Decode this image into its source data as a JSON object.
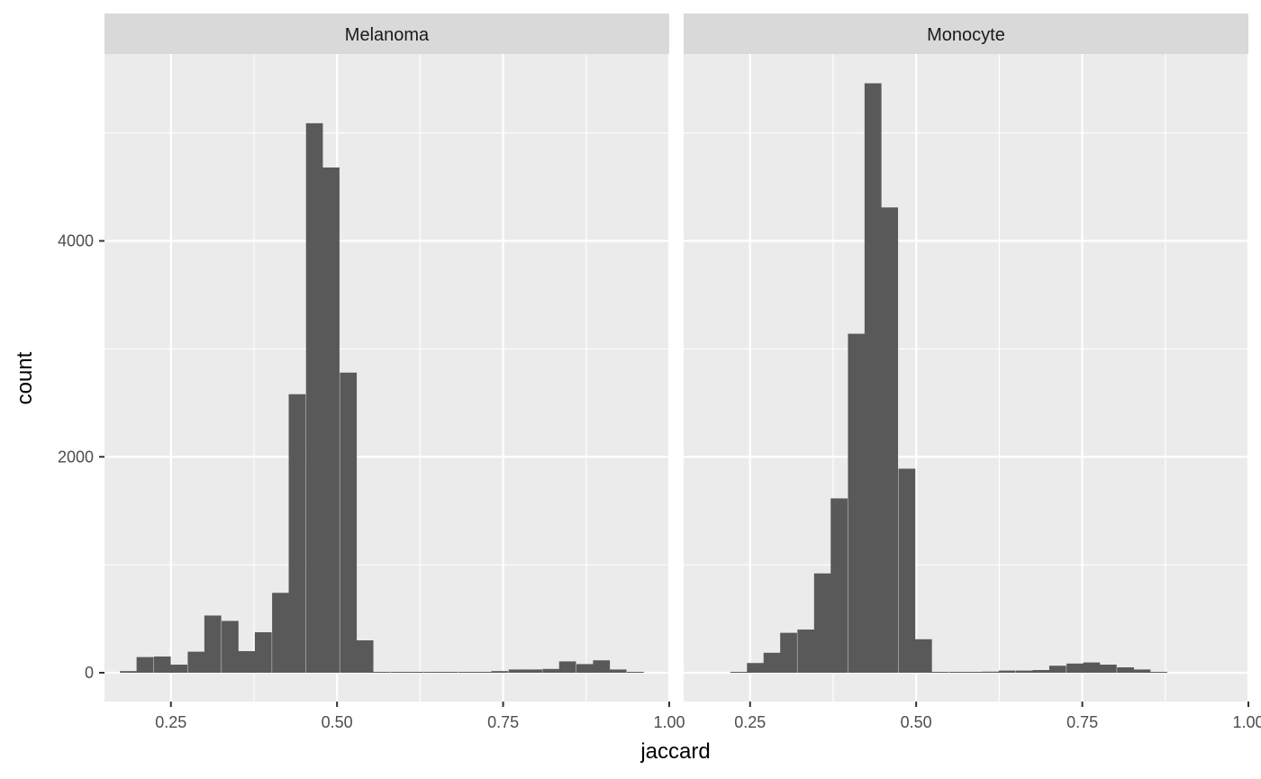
{
  "chart_data": {
    "type": "bar",
    "xlabel": "jaccard",
    "ylabel": "count",
    "xlim": [
      0.15,
      1.0
    ],
    "ylim": [
      0,
      5800
    ],
    "x_ticks": [
      "0.25",
      "0.50",
      "0.75",
      "1.00"
    ],
    "x_tick_values": [
      0.25,
      0.5,
      0.75,
      1.0
    ],
    "y_ticks": [
      "0",
      "2000",
      "4000"
    ],
    "y_tick_values": [
      0,
      2000,
      4000
    ],
    "grid": true,
    "bin_width": 0.0254,
    "colors": {
      "bar": "#595959",
      "panel_bg": "#ebebeb",
      "strip_bg": "#d9d9d9",
      "grid": "#ffffff"
    },
    "panels": [
      {
        "name": "Melanoma",
        "bins": [
          {
            "x": 0.186,
            "count": 15
          },
          {
            "x": 0.211,
            "count": 145
          },
          {
            "x": 0.237,
            "count": 150
          },
          {
            "x": 0.262,
            "count": 75
          },
          {
            "x": 0.288,
            "count": 195
          },
          {
            "x": 0.313,
            "count": 530
          },
          {
            "x": 0.339,
            "count": 480
          },
          {
            "x": 0.364,
            "count": 200
          },
          {
            "x": 0.389,
            "count": 375
          },
          {
            "x": 0.415,
            "count": 740
          },
          {
            "x": 0.44,
            "count": 2580
          },
          {
            "x": 0.466,
            "count": 5090
          },
          {
            "x": 0.491,
            "count": 4680
          },
          {
            "x": 0.517,
            "count": 2780
          },
          {
            "x": 0.542,
            "count": 300
          },
          {
            "x": 0.567,
            "count": 0
          },
          {
            "x": 0.593,
            "count": 0
          },
          {
            "x": 0.618,
            "count": 0
          },
          {
            "x": 0.644,
            "count": 0
          },
          {
            "x": 0.669,
            "count": 0
          },
          {
            "x": 0.695,
            "count": 0
          },
          {
            "x": 0.72,
            "count": 5
          },
          {
            "x": 0.745,
            "count": 15
          },
          {
            "x": 0.771,
            "count": 30
          },
          {
            "x": 0.796,
            "count": 30
          },
          {
            "x": 0.822,
            "count": 35
          },
          {
            "x": 0.847,
            "count": 105
          },
          {
            "x": 0.873,
            "count": 80
          },
          {
            "x": 0.898,
            "count": 115
          },
          {
            "x": 0.923,
            "count": 30
          },
          {
            "x": 0.949,
            "count": 5
          }
        ]
      },
      {
        "name": "Monocyte",
        "bins": [
          {
            "x": 0.233,
            "count": 5
          },
          {
            "x": 0.258,
            "count": 90
          },
          {
            "x": 0.283,
            "count": 185
          },
          {
            "x": 0.308,
            "count": 370
          },
          {
            "x": 0.334,
            "count": 400
          },
          {
            "x": 0.359,
            "count": 920
          },
          {
            "x": 0.384,
            "count": 1615
          },
          {
            "x": 0.41,
            "count": 3140
          },
          {
            "x": 0.435,
            "count": 5460
          },
          {
            "x": 0.46,
            "count": 4310
          },
          {
            "x": 0.486,
            "count": 1890
          },
          {
            "x": 0.511,
            "count": 310
          },
          {
            "x": 0.536,
            "count": 5
          },
          {
            "x": 0.562,
            "count": 5
          },
          {
            "x": 0.587,
            "count": 5
          },
          {
            "x": 0.612,
            "count": 10
          },
          {
            "x": 0.637,
            "count": 20
          },
          {
            "x": 0.663,
            "count": 20
          },
          {
            "x": 0.688,
            "count": 25
          },
          {
            "x": 0.713,
            "count": 65
          },
          {
            "x": 0.739,
            "count": 85
          },
          {
            "x": 0.764,
            "count": 95
          },
          {
            "x": 0.789,
            "count": 75
          },
          {
            "x": 0.815,
            "count": 50
          },
          {
            "x": 0.84,
            "count": 30
          },
          {
            "x": 0.865,
            "count": 5
          }
        ]
      }
    ]
  }
}
